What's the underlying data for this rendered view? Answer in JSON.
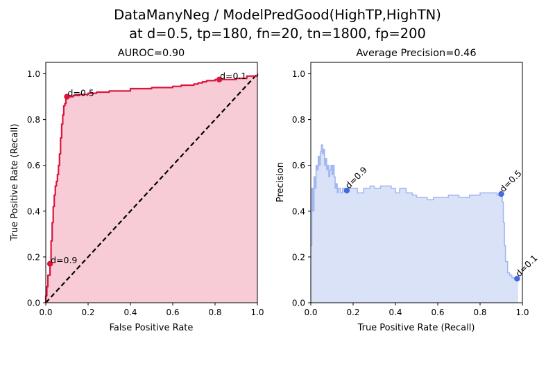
{
  "figure": {
    "title_line1": "DataManyNeg / ModelPredGood(HighTP,HighTN)",
    "title_line2": "at d=0.5, tp=180, fn=20, tn=1800, fp=200"
  },
  "chart_data": [
    {
      "type": "line",
      "title": "AUROC=0.90",
      "xlabel": "False Positive Rate",
      "ylabel": "True Positive Rate (Recall)",
      "xlim": [
        0,
        1
      ],
      "ylim": [
        0,
        1.05
      ],
      "xticks": [
        "0.0",
        "0.2",
        "0.4",
        "0.6",
        "0.8",
        "1.0"
      ],
      "yticks": [
        "0.0",
        "0.2",
        "0.4",
        "0.6",
        "0.8",
        "1.0"
      ],
      "grid": false,
      "colors": {
        "curve": "#dc143c",
        "fill": "#f7ccd6",
        "diagonal": "#000000"
      },
      "series": [
        {
          "x": [
            0.0,
            0.0,
            0.005,
            0.01,
            0.02,
            0.025,
            0.03,
            0.035,
            0.04,
            0.045,
            0.05,
            0.055,
            0.06,
            0.065,
            0.07,
            0.075,
            0.08,
            0.085,
            0.09,
            0.095,
            0.1,
            0.13,
            0.16,
            0.2,
            0.24,
            0.3,
            0.4,
            0.5,
            0.6,
            0.64,
            0.7,
            0.72,
            0.74,
            0.76,
            0.8,
            0.82,
            0.85,
            0.9,
            0.95,
            1.0
          ],
          "y": [
            0.0,
            0.03,
            0.07,
            0.12,
            0.17,
            0.27,
            0.35,
            0.42,
            0.47,
            0.51,
            0.53,
            0.56,
            0.6,
            0.65,
            0.72,
            0.78,
            0.82,
            0.86,
            0.87,
            0.89,
            0.9,
            0.905,
            0.91,
            0.915,
            0.92,
            0.925,
            0.935,
            0.94,
            0.945,
            0.95,
            0.955,
            0.96,
            0.965,
            0.97,
            0.975,
            0.975,
            0.975,
            0.98,
            0.99,
            1.0
          ]
        },
        {
          "x": [
            0.0,
            1.0
          ],
          "y": [
            0.0,
            1.0
          ]
        }
      ],
      "points": [
        {
          "label": "d=0.9",
          "x": 0.02,
          "y": 0.17
        },
        {
          "label": "d=0.5",
          "x": 0.1,
          "y": 0.9
        },
        {
          "label": "d=0.1",
          "x": 0.82,
          "y": 0.975
        }
      ]
    },
    {
      "type": "line",
      "title": "Average Precision=0.46",
      "xlabel": "True Positive Rate (Recall)",
      "ylabel": "Precision",
      "xlim": [
        0,
        1
      ],
      "ylim": [
        0,
        1.05
      ],
      "xticks": [
        "0.0",
        "0.2",
        "0.4",
        "0.6",
        "0.8",
        "1.0"
      ],
      "yticks": [
        "0.0",
        "0.2",
        "0.4",
        "0.6",
        "0.8",
        "1.0"
      ],
      "grid": false,
      "colors": {
        "curve": "#a3b8f0",
        "fill": "#dae2f8",
        "point": "#4169e1"
      },
      "series": [
        {
          "x": [
            0.0,
            0.005,
            0.01,
            0.015,
            0.02,
            0.025,
            0.03,
            0.035,
            0.04,
            0.045,
            0.05,
            0.055,
            0.06,
            0.065,
            0.07,
            0.075,
            0.08,
            0.085,
            0.09,
            0.095,
            0.1,
            0.105,
            0.11,
            0.115,
            0.12,
            0.125,
            0.13,
            0.14,
            0.15,
            0.16,
            0.17,
            0.18,
            0.2,
            0.22,
            0.25,
            0.28,
            0.3,
            0.33,
            0.35,
            0.38,
            0.4,
            0.42,
            0.45,
            0.48,
            0.5,
            0.52,
            0.55,
            0.58,
            0.6,
            0.65,
            0.7,
            0.75,
            0.8,
            0.85,
            0.88,
            0.9,
            0.905,
            0.91,
            0.915,
            0.92,
            0.93,
            0.94,
            0.95,
            0.96,
            0.97,
            0.98
          ],
          "y": [
            0.25,
            0.5,
            0.4,
            0.55,
            0.5,
            0.6,
            0.58,
            0.64,
            0.6,
            0.66,
            0.69,
            0.65,
            0.67,
            0.6,
            0.63,
            0.58,
            0.6,
            0.55,
            0.58,
            0.6,
            0.56,
            0.6,
            0.55,
            0.5,
            0.52,
            0.48,
            0.5,
            0.48,
            0.5,
            0.49,
            0.49,
            0.5,
            0.5,
            0.48,
            0.5,
            0.51,
            0.5,
            0.51,
            0.51,
            0.5,
            0.48,
            0.5,
            0.48,
            0.47,
            0.46,
            0.46,
            0.45,
            0.46,
            0.46,
            0.47,
            0.46,
            0.47,
            0.48,
            0.48,
            0.47,
            0.47,
            0.44,
            0.35,
            0.25,
            0.18,
            0.13,
            0.12,
            0.11,
            0.105,
            0.105,
            0.1
          ]
        }
      ],
      "points": [
        {
          "label": "d=0.9",
          "x": 0.17,
          "y": 0.49
        },
        {
          "label": "d=0.5",
          "x": 0.9,
          "y": 0.475
        },
        {
          "label": "d=0.1",
          "x": 0.975,
          "y": 0.105
        }
      ]
    }
  ]
}
